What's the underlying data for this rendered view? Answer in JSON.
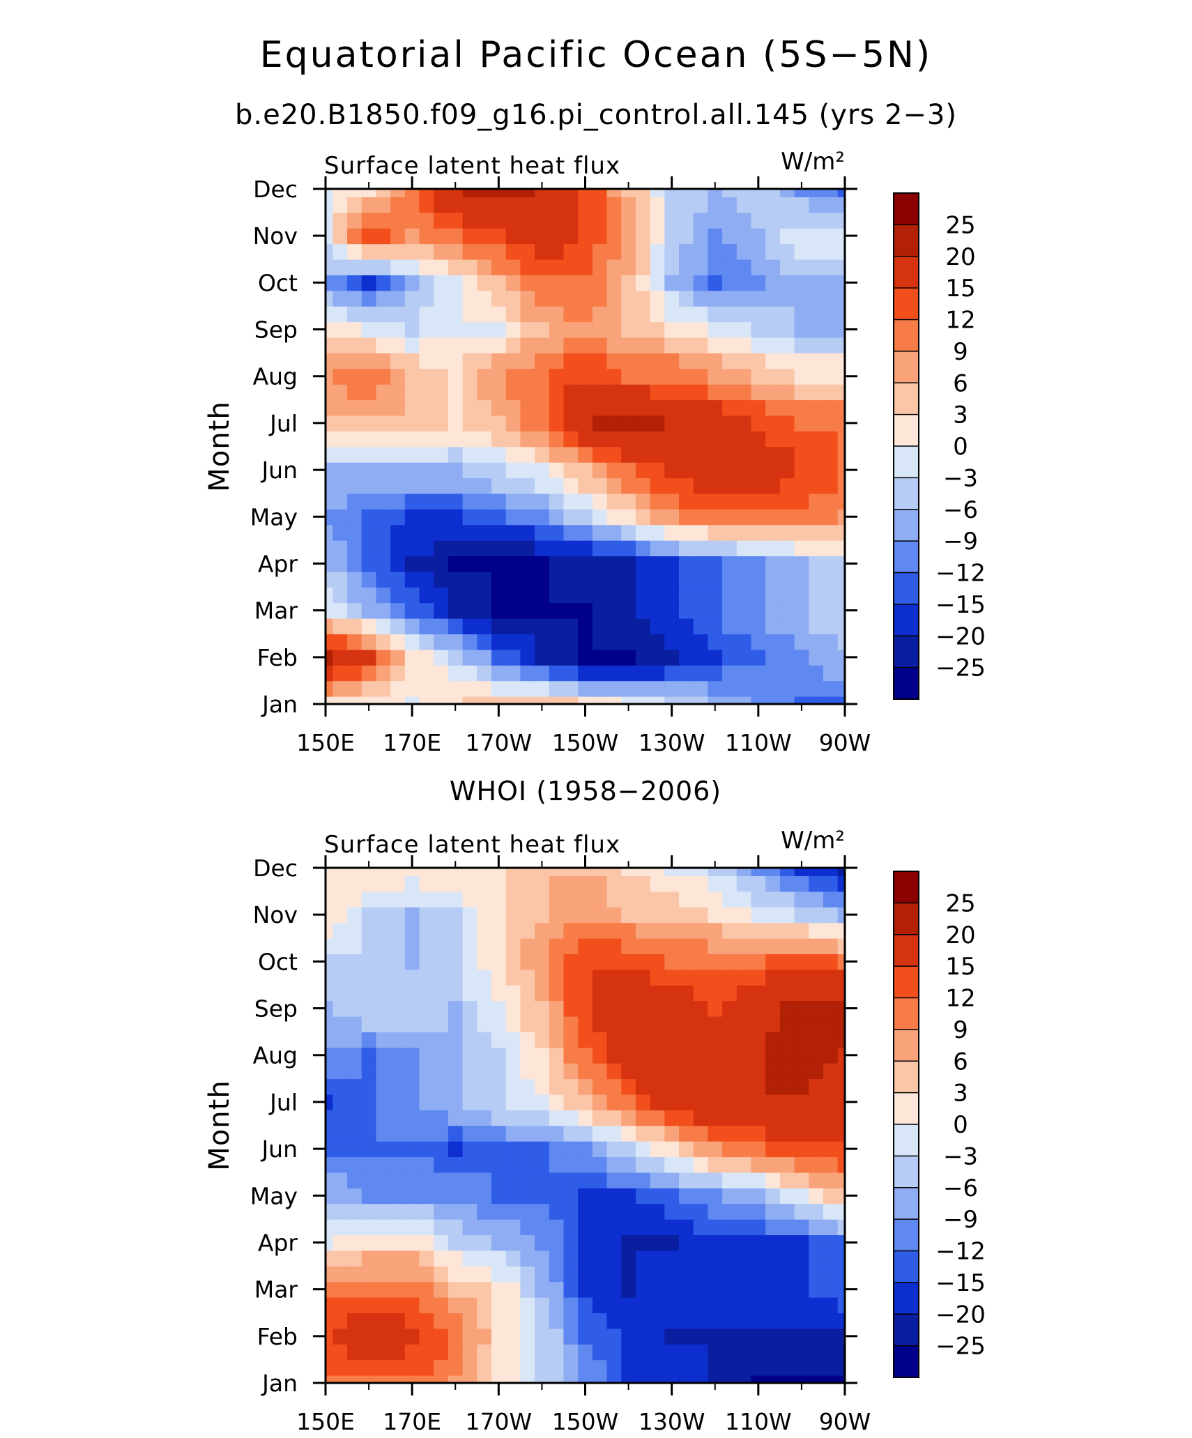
{
  "figure": {
    "title": "Equatorial Pacific Ocean (5S−5N)",
    "colorbar_levels": [
      "25",
      "20",
      "15",
      "12",
      "9",
      "6",
      "3",
      "0",
      "−3",
      "−6",
      "−9",
      "−12",
      "−15",
      "−20",
      "−25"
    ],
    "colorbar_colors": [
      "#8b0000",
      "#b22105",
      "#d63410",
      "#f24f1c",
      "#f77c47",
      "#f9a37a",
      "#fbc6a8",
      "#fde6d8",
      "#d9e6f8",
      "#b6ccf4",
      "#8fadf2",
      "#5f88f0",
      "#2f5de8",
      "#0d2fd0",
      "#0a1ea0",
      "#00008b"
    ]
  },
  "chart_data": [
    {
      "type": "heatmap",
      "title": "b.e20.B1850.f09_g16.pi_control.all.145 (yrs 2−3)",
      "left_label": "Surface latent heat flux",
      "units": "W/m²",
      "xlabel": "",
      "ylabel": "Month",
      "x_ticks": [
        "150E",
        "170E",
        "170W",
        "150W",
        "130W",
        "110W",
        "90W"
      ],
      "y_ticks": [
        "Jan",
        "Feb",
        "Mar",
        "Apr",
        "May",
        "Jun",
        "Jul",
        "Aug",
        "Sep",
        "Oct",
        "Nov",
        "Dec"
      ],
      "columns_lon": [
        150,
        160,
        170,
        180,
        190,
        200,
        210,
        220,
        230,
        240,
        250,
        260,
        270
      ],
      "values": [
        [
          3,
          1,
          0,
          3,
          6,
          6,
          3,
          0,
          -3,
          -6,
          -9,
          -12,
          -12
        ],
        [
          22,
          16,
          3,
          -3,
          -12,
          -20,
          -25,
          -25,
          -20,
          -15,
          -12,
          -9,
          -6
        ],
        [
          0,
          -6,
          -12,
          -20,
          -25,
          -25,
          -25,
          -20,
          -15,
          -12,
          -9,
          -6,
          -3
        ],
        [
          -6,
          -12,
          -20,
          -25,
          -25,
          -25,
          -22,
          -20,
          -15,
          -12,
          -9,
          -6,
          -3
        ],
        [
          -9,
          -12,
          -15,
          -15,
          -12,
          -9,
          -3,
          3,
          9,
          12,
          12,
          12,
          9
        ],
        [
          -6,
          -6,
          -6,
          -6,
          -3,
          0,
          6,
          12,
          16,
          20,
          18,
          15,
          12
        ],
        [
          6,
          6,
          6,
          3,
          6,
          12,
          20,
          22,
          20,
          18,
          15,
          12,
          12
        ],
        [
          9,
          12,
          6,
          3,
          9,
          12,
          15,
          12,
          12,
          9,
          6,
          3,
          3
        ],
        [
          3,
          0,
          -3,
          0,
          0,
          6,
          9,
          6,
          3,
          0,
          -3,
          -6,
          -6
        ],
        [
          -9,
          -15,
          -6,
          0,
          6,
          12,
          12,
          6,
          -6,
          -12,
          -9,
          -6,
          -6
        ],
        [
          0,
          15,
          9,
          12,
          15,
          18,
          15,
          9,
          -3,
          -9,
          -6,
          0,
          0
        ],
        [
          0,
          3,
          12,
          20,
          22,
          20,
          15,
          6,
          -3,
          -6,
          -3,
          -9,
          -12
        ]
      ]
    },
    {
      "type": "heatmap",
      "title": "WHOI (1958−2006)",
      "left_label": "Surface latent heat flux",
      "units": "W/m²",
      "xlabel": "",
      "ylabel": "Month",
      "x_ticks": [
        "150E",
        "170E",
        "170W",
        "150W",
        "130W",
        "110W",
        "90W"
      ],
      "y_ticks": [
        "Jan",
        "Feb",
        "Mar",
        "Apr",
        "May",
        "Jun",
        "Jul",
        "Aug",
        "Sep",
        "Oct",
        "Nov",
        "Dec"
      ],
      "columns_lon": [
        150,
        160,
        170,
        180,
        190,
        200,
        210,
        220,
        230,
        240,
        250,
        260,
        270
      ],
      "values": [
        [
          12,
          12,
          12,
          9,
          3,
          -3,
          -9,
          -15,
          -15,
          -20,
          -25,
          -25,
          -25
        ],
        [
          15,
          18,
          16,
          12,
          3,
          -3,
          -12,
          -15,
          -20,
          -20,
          -22,
          -22,
          -20
        ],
        [
          12,
          12,
          12,
          6,
          3,
          -6,
          -15,
          -20,
          -15,
          -15,
          -15,
          -15,
          -12
        ],
        [
          0,
          3,
          3,
          -3,
          -6,
          -9,
          -15,
          -20,
          -20,
          -15,
          -15,
          -15,
          -12
        ],
        [
          -6,
          -9,
          -9,
          -9,
          -12,
          -12,
          -15,
          -15,
          -12,
          -9,
          -6,
          0,
          6
        ],
        [
          -12,
          -12,
          -12,
          -15,
          -12,
          -12,
          -9,
          -3,
          3,
          9,
          12,
          15,
          15
        ],
        [
          -15,
          -12,
          -9,
          -6,
          -3,
          0,
          6,
          12,
          18,
          20,
          20,
          20,
          18
        ],
        [
          -9,
          -12,
          -9,
          -6,
          -3,
          3,
          12,
          18,
          20,
          20,
          20,
          22,
          20
        ],
        [
          -6,
          -3,
          -3,
          -6,
          0,
          6,
          15,
          18,
          18,
          15,
          18,
          22,
          22
        ],
        [
          -3,
          -3,
          -6,
          -3,
          3,
          9,
          15,
          15,
          12,
          12,
          12,
          15,
          12
        ],
        [
          3,
          -3,
          -6,
          -3,
          3,
          6,
          9,
          6,
          6,
          3,
          0,
          -3,
          -6
        ],
        [
          3,
          3,
          3,
          3,
          3,
          6,
          6,
          3,
          0,
          -3,
          -9,
          -15,
          -20
        ]
      ]
    }
  ]
}
